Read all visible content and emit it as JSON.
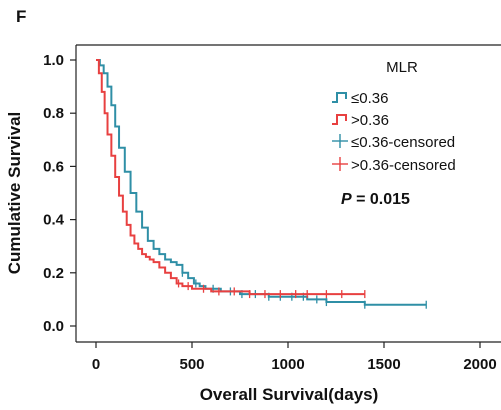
{
  "panel_label": "F",
  "chart_data": {
    "type": "line",
    "step": true,
    "xlabel": "Overall Survival(days)",
    "ylabel": "Cumulative Survival",
    "xlim": [
      0,
      2000
    ],
    "ylim": [
      0,
      1.0
    ],
    "xticks": [
      "0",
      "500",
      "1000",
      "1500",
      "2000"
    ],
    "yticks": [
      "0.0",
      "0.2",
      "0.4",
      "0.6",
      "0.8",
      "1.0"
    ],
    "grid": false,
    "legend": {
      "title": "MLR",
      "placement": "top-right",
      "entries": [
        "≤0.36",
        ">0.36",
        "≤0.36-censored",
        ">0.36-censored"
      ]
    },
    "annotation": {
      "italic": "P",
      "text": " = 0.015"
    },
    "series": [
      {
        "name": "≤0.36",
        "color": "#2f8fa6",
        "x": [
          0,
          20,
          40,
          60,
          80,
          100,
          120,
          150,
          180,
          210,
          240,
          270,
          300,
          330,
          360,
          390,
          420,
          450,
          480,
          510,
          540,
          570,
          600,
          650,
          700,
          750,
          800,
          900,
          1000,
          1100,
          1200,
          1400,
          1600,
          1720
        ],
        "y": [
          1.0,
          0.98,
          0.95,
          0.9,
          0.83,
          0.75,
          0.67,
          0.58,
          0.5,
          0.43,
          0.37,
          0.32,
          0.29,
          0.27,
          0.25,
          0.24,
          0.23,
          0.2,
          0.18,
          0.16,
          0.15,
          0.14,
          0.14,
          0.13,
          0.13,
          0.12,
          0.12,
          0.11,
          0.11,
          0.1,
          0.09,
          0.08,
          0.08,
          0.08
        ],
        "censored_x": [
          450,
          520,
          610,
          700,
          760,
          830,
          900,
          960,
          1020,
          1080,
          1150,
          1200,
          1400,
          1720
        ]
      },
      {
        "name": ">0.36",
        "color": "#e84040",
        "x": [
          0,
          15,
          30,
          45,
          60,
          80,
          100,
          120,
          140,
          160,
          180,
          200,
          220,
          240,
          260,
          280,
          300,
          330,
          360,
          390,
          420,
          450,
          500,
          550,
          600,
          700,
          800,
          900,
          1000,
          1200,
          1400
        ],
        "y": [
          1.0,
          0.95,
          0.88,
          0.8,
          0.72,
          0.64,
          0.56,
          0.49,
          0.43,
          0.38,
          0.34,
          0.31,
          0.29,
          0.27,
          0.26,
          0.25,
          0.24,
          0.22,
          0.2,
          0.18,
          0.16,
          0.15,
          0.14,
          0.14,
          0.13,
          0.13,
          0.12,
          0.12,
          0.12,
          0.12,
          0.12
        ],
        "censored_x": [
          430,
          480,
          560,
          640,
          720,
          800,
          880,
          960,
          1040,
          1100,
          1200,
          1280,
          1400
        ]
      }
    ]
  }
}
